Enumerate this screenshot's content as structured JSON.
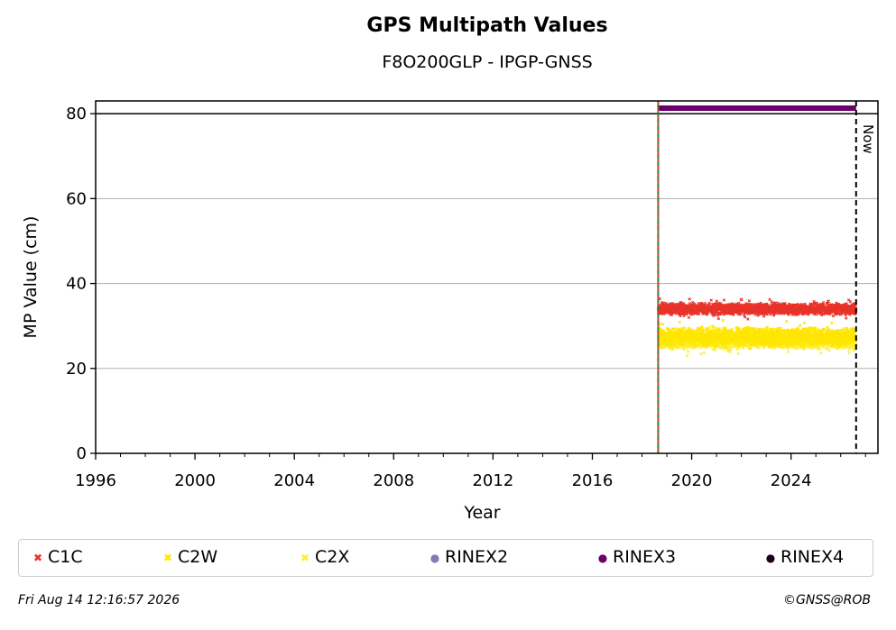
{
  "header": {
    "title": "GPS Multipath Values",
    "subtitle": "F8O200GLP - IPGP-GNSS"
  },
  "footer": {
    "date": "Fri Aug 14 12:16:57 2026",
    "credit": "©GNSS@ROB"
  },
  "chart_data": {
    "type": "scatter",
    "xlabel": "Year",
    "ylabel": "MP Value (cm)",
    "xlim": [
      1996,
      2027.5
    ],
    "ylim": [
      0,
      83
    ],
    "x_ticks": [
      1996,
      2000,
      2004,
      2008,
      2012,
      2016,
      2020,
      2024
    ],
    "y_ticks": [
      0,
      20,
      40,
      60,
      80
    ],
    "grid": "horizontal",
    "legend_position": "bottom",
    "reference_line": {
      "y": 80
    },
    "start_marker": {
      "x": 2018.65,
      "colors": [
        "#2e7d32",
        "#e53935"
      ]
    },
    "now_marker": {
      "x": 2026.62,
      "label": "Now"
    },
    "series": [
      {
        "name": "C1C",
        "color": "#e8332a",
        "marker": "x",
        "x_start": 2018.65,
        "x_end": 2026.62,
        "mean": 34.0,
        "spread": 1.0,
        "noise_amplitude": 0.9,
        "points": [
          [
            2018.8,
            33.5
          ],
          [
            2019.5,
            34.2
          ],
          [
            2020.5,
            33.6
          ],
          [
            2021.5,
            34.1
          ],
          [
            2022.0,
            36.2
          ],
          [
            2022.5,
            33.9
          ],
          [
            2023.5,
            34.3
          ],
          [
            2024.5,
            34.0
          ],
          [
            2025.5,
            35.8
          ],
          [
            2026.5,
            34.6
          ]
        ]
      },
      {
        "name": "C2W",
        "color": "#ffe600",
        "marker": "x",
        "x_start": 2018.65,
        "x_end": 2026.62,
        "mean": 27.5,
        "spread": 1.6,
        "noise_amplitude": 1.4,
        "points": [
          [
            2018.8,
            28.0
          ],
          [
            2019.5,
            27.8
          ],
          [
            2020.5,
            27.2
          ],
          [
            2021.5,
            27.0
          ],
          [
            2022.5,
            26.8
          ],
          [
            2023.5,
            26.5
          ],
          [
            2024.5,
            26.9
          ],
          [
            2025.5,
            27.3
          ],
          [
            2026.5,
            27.6
          ]
        ]
      },
      {
        "name": "C2X",
        "color": "#ffee33",
        "marker": "x",
        "x_start": 2018.65,
        "x_end": 2026.62,
        "mean": 26.5,
        "spread": 1.4,
        "noise_amplitude": 1.2,
        "points": [
          [
            2019.0,
            27.0
          ],
          [
            2020.5,
            26.5
          ],
          [
            2022.0,
            26.2
          ],
          [
            2023.5,
            25.8
          ],
          [
            2025.0,
            26.3
          ],
          [
            2026.5,
            26.8
          ]
        ]
      },
      {
        "name": "RINEX2",
        "color": "#8878b8",
        "marker": "o",
        "points": []
      },
      {
        "name": "RINEX3",
        "color": "#6a006a",
        "marker": "o",
        "x_start": 2018.65,
        "x_end": 2026.62,
        "y": 81.3
      },
      {
        "name": "RINEX4",
        "color": "#1a0018",
        "marker": "o",
        "points": []
      }
    ]
  }
}
